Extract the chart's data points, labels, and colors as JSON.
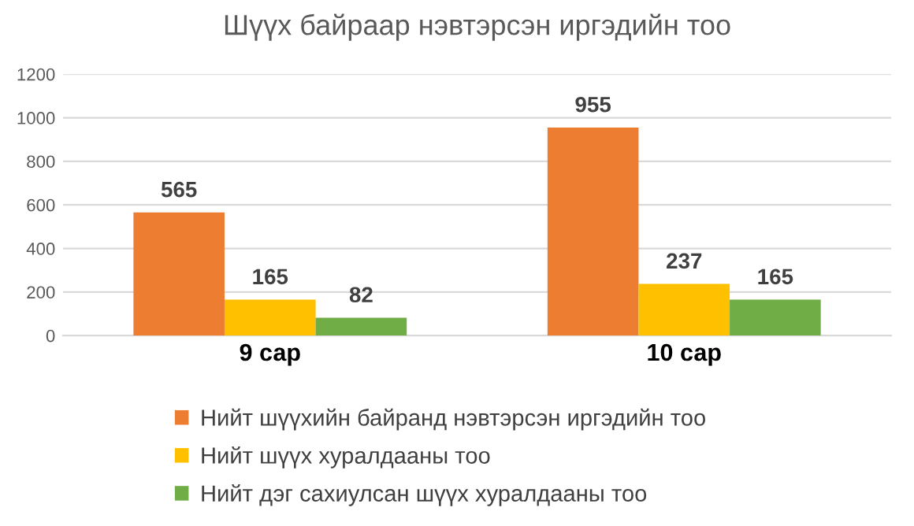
{
  "chart_data": {
    "type": "bar",
    "title": "Шүүх байраар нэвтэрсэн иргэдийн тоо",
    "categories": [
      "9 сар",
      "10 сар"
    ],
    "series": [
      {
        "name": "Нийт шүүхийн байранд нэвтэрсэн иргэдийн тоо",
        "color": "#ed7d31",
        "values": [
          565,
          955
        ]
      },
      {
        "name": "Нийт шүүх хуралдааны тоо",
        "color": "#ffc000",
        "values": [
          165,
          237
        ]
      },
      {
        "name": "Нийт дэг сахиулсан шүүх хуралдааны тоо",
        "color": "#70ad47",
        "values": [
          82,
          165
        ]
      }
    ],
    "ylim": [
      0,
      1200
    ],
    "yticks": [
      0,
      200,
      400,
      600,
      800,
      1000,
      1200
    ],
    "grid": "y",
    "legend": "bottom",
    "data_labels": true
  }
}
